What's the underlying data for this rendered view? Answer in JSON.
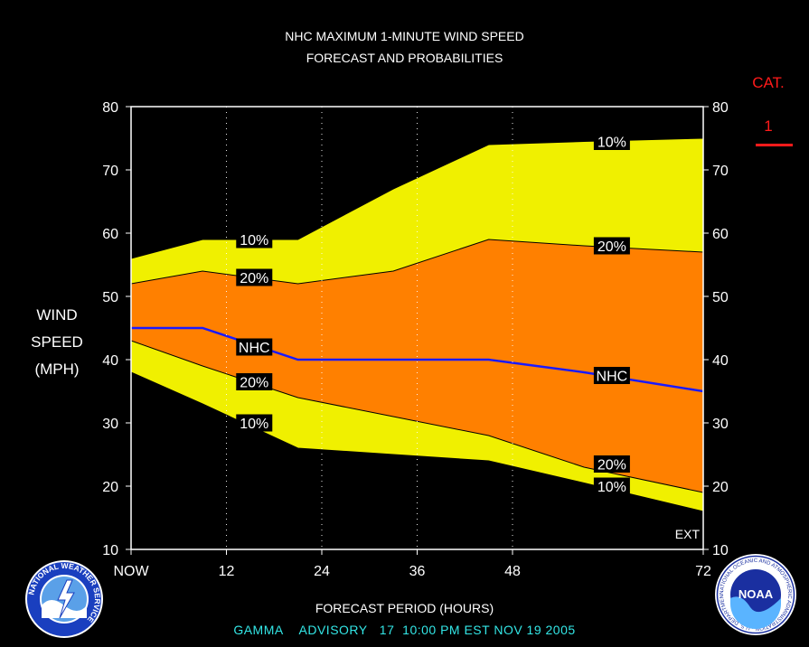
{
  "header": {
    "title_line1": "NHC MAXIMUM 1-MINUTE WIND SPEED",
    "title_line2": "FORECAST AND PROBABILITIES"
  },
  "category": {
    "label": "CAT.",
    "value": "1",
    "color": "#ff1a1a"
  },
  "footer": {
    "storm": "GAMMA",
    "advisory_label": "ADVISORY",
    "advisory_number": "17",
    "issued": "10:00 PM EST NOV 19 2005",
    "color": "#33e6e6"
  },
  "logos": {
    "left": {
      "name": "nws-logo",
      "text": "NATIONAL WEATHER SERVICE"
    },
    "right": {
      "name": "noaa-logo",
      "text": "NOAA",
      "ring_text": "NATIONAL OCEANIC AND ATMOSPHERIC ADMINISTRATION · U.S. DEPARTMENT OF COMMERCE"
    }
  },
  "chart_data": {
    "type": "area",
    "ylabel_lines": [
      "WIND",
      "SPEED",
      "(MPH)"
    ],
    "xlabel": "FORECAST PERIOD (HOURS)",
    "ylim": [
      10,
      80
    ],
    "yticks": [
      10,
      20,
      30,
      40,
      50,
      60,
      70,
      80
    ],
    "xlim": [
      0,
      72
    ],
    "xticks": [
      {
        "x": 0,
        "label": "NOW"
      },
      {
        "x": 12,
        "label": "12"
      },
      {
        "x": 24,
        "label": "24"
      },
      {
        "x": 36,
        "label": "36"
      },
      {
        "x": 48,
        "label": "48"
      },
      {
        "x": 72,
        "label": "72"
      }
    ],
    "grid_x": [
      12,
      24,
      36,
      48
    ],
    "ext_label": "EXT",
    "colors": {
      "p10": "#f0f000",
      "p20": "#ff8000",
      "nhc": "#1a1aff",
      "edge": "#000000"
    },
    "upper10": [
      [
        0,
        56
      ],
      [
        9,
        59
      ],
      [
        21,
        59
      ],
      [
        33,
        67
      ],
      [
        45,
        74
      ],
      [
        57,
        74.5
      ],
      [
        72,
        75
      ]
    ],
    "upper20": [
      [
        0,
        52
      ],
      [
        9,
        54
      ],
      [
        21,
        52
      ],
      [
        33,
        54
      ],
      [
        45,
        59
      ],
      [
        57,
        58
      ],
      [
        72,
        57
      ]
    ],
    "nhc": [
      [
        0,
        45
      ],
      [
        9,
        45
      ],
      [
        21,
        40
      ],
      [
        33,
        40
      ],
      [
        45,
        40
      ],
      [
        57,
        38
      ],
      [
        72,
        35
      ]
    ],
    "lower20": [
      [
        0,
        43
      ],
      [
        9,
        39
      ],
      [
        21,
        34
      ],
      [
        33,
        31
      ],
      [
        45,
        28
      ],
      [
        57,
        23
      ],
      [
        72,
        19
      ]
    ],
    "lower10": [
      [
        0,
        38
      ],
      [
        9,
        33
      ],
      [
        21,
        26
      ],
      [
        33,
        25
      ],
      [
        45,
        24
      ],
      [
        57,
        20.5
      ],
      [
        72,
        16
      ]
    ],
    "labels": [
      {
        "text": "10%",
        "x": 15.5,
        "y": 59
      },
      {
        "text": "20%",
        "x": 15.5,
        "y": 53
      },
      {
        "text": "NHC",
        "x": 15.5,
        "y": 42
      },
      {
        "text": "20%",
        "x": 15.5,
        "y": 36.5
      },
      {
        "text": "10%",
        "x": 15.5,
        "y": 30
      },
      {
        "text": "10%",
        "x": 60.5,
        "y": 74.5
      },
      {
        "text": "20%",
        "x": 60.5,
        "y": 58
      },
      {
        "text": "NHC",
        "x": 60.5,
        "y": 37.5
      },
      {
        "text": "20%",
        "x": 60.5,
        "y": 23.5
      },
      {
        "text": "10%",
        "x": 60.5,
        "y": 20
      }
    ]
  }
}
